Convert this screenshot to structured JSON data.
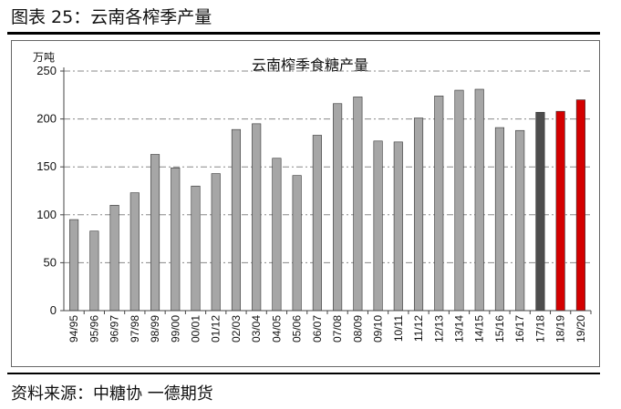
{
  "figure_title": "图表 25：云南各榨季产量",
  "source_text": "资料来源：中糖协  一德期货",
  "colors": {
    "normal": "#a6a6a6",
    "dark": "#4d4d4d",
    "red": "#d40000",
    "grid": "#888888",
    "axis": "#444444"
  },
  "chart_data": {
    "type": "bar",
    "title": "云南榨季食糖产量",
    "ylabel": "万吨",
    "xlabel": "",
    "ylim": [
      0,
      250
    ],
    "yticks": [
      0,
      50,
      100,
      150,
      200,
      250
    ],
    "grid": true,
    "categories": [
      "94/95",
      "95/96",
      "96/97",
      "97/98",
      "98/99",
      "99/00",
      "00/01",
      "01/12",
      "02/03",
      "03/04",
      "04/05",
      "05/06",
      "06/07",
      "07/08",
      "08/09",
      "09/10",
      "10/11",
      "11/12",
      "12/13",
      "13/14",
      "14/15",
      "15/16",
      "16/17",
      "17/18",
      "18/19",
      "19/20"
    ],
    "values": [
      95,
      83,
      110,
      123,
      163,
      149,
      130,
      143,
      189,
      195,
      159,
      141,
      183,
      216,
      223,
      177,
      176,
      201,
      224,
      230,
      231,
      191,
      188,
      207,
      208,
      220
    ],
    "bar_styles": [
      "normal",
      "normal",
      "normal",
      "normal",
      "normal",
      "normal",
      "normal",
      "normal",
      "normal",
      "normal",
      "normal",
      "normal",
      "normal",
      "normal",
      "normal",
      "normal",
      "normal",
      "normal",
      "normal",
      "normal",
      "normal",
      "normal",
      "normal",
      "dark",
      "red",
      "red"
    ]
  }
}
